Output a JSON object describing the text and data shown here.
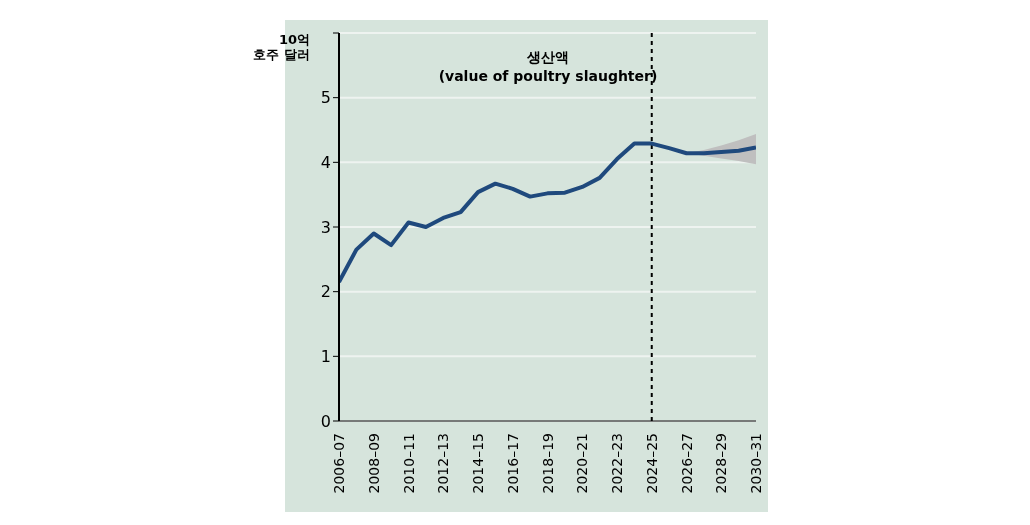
{
  "chart_data": {
    "type": "line",
    "title": "생산액\n(value of poultry slaughter)",
    "ylabel": "10억\n호주 달러",
    "categories": [
      "2006–07",
      null,
      "2008–09",
      null,
      "2010–11",
      null,
      "2012–13",
      null,
      "2014–15",
      null,
      "2016–17",
      null,
      "2018–19",
      null,
      "2020–21",
      null,
      "2022–23",
      null,
      "2024–25",
      null,
      "2026–27",
      null,
      "2028–29",
      null,
      "2030–31"
    ],
    "series": [
      {
        "color": "#1f497d",
        "values": [
          2.15,
          2.65,
          2.9,
          2.72,
          3.07,
          3.0,
          3.14,
          3.23,
          3.54,
          3.67,
          3.59,
          3.47,
          3.52,
          3.53,
          3.62,
          3.76,
          4.05,
          4.29,
          4.29,
          4.22,
          4.14,
          4.14,
          4.16,
          4.18,
          4.23
        ],
        "lower": [
          null,
          null,
          null,
          null,
          null,
          null,
          null,
          null,
          null,
          null,
          null,
          null,
          null,
          null,
          null,
          null,
          null,
          null,
          null,
          null,
          4.14,
          4.1,
          4.06,
          4.02,
          3.97
        ],
        "upper": [
          null,
          null,
          null,
          null,
          null,
          null,
          null,
          null,
          null,
          null,
          null,
          null,
          null,
          null,
          null,
          null,
          null,
          null,
          null,
          null,
          4.14,
          4.19,
          4.26,
          4.34,
          4.44
        ]
      }
    ],
    "ylim": [
      0,
      6
    ],
    "yticks": [
      0,
      1,
      2,
      3,
      4,
      5,
      {
        "value": 6,
        "label": null
      }
    ],
    "grid": "y",
    "marker": "none",
    "line_style": "solid",
    "ref_lines": [
      {
        "axis": "x",
        "value": "2024–25",
        "color": "#000000",
        "line_style": "dashed"
      }
    ]
  }
}
